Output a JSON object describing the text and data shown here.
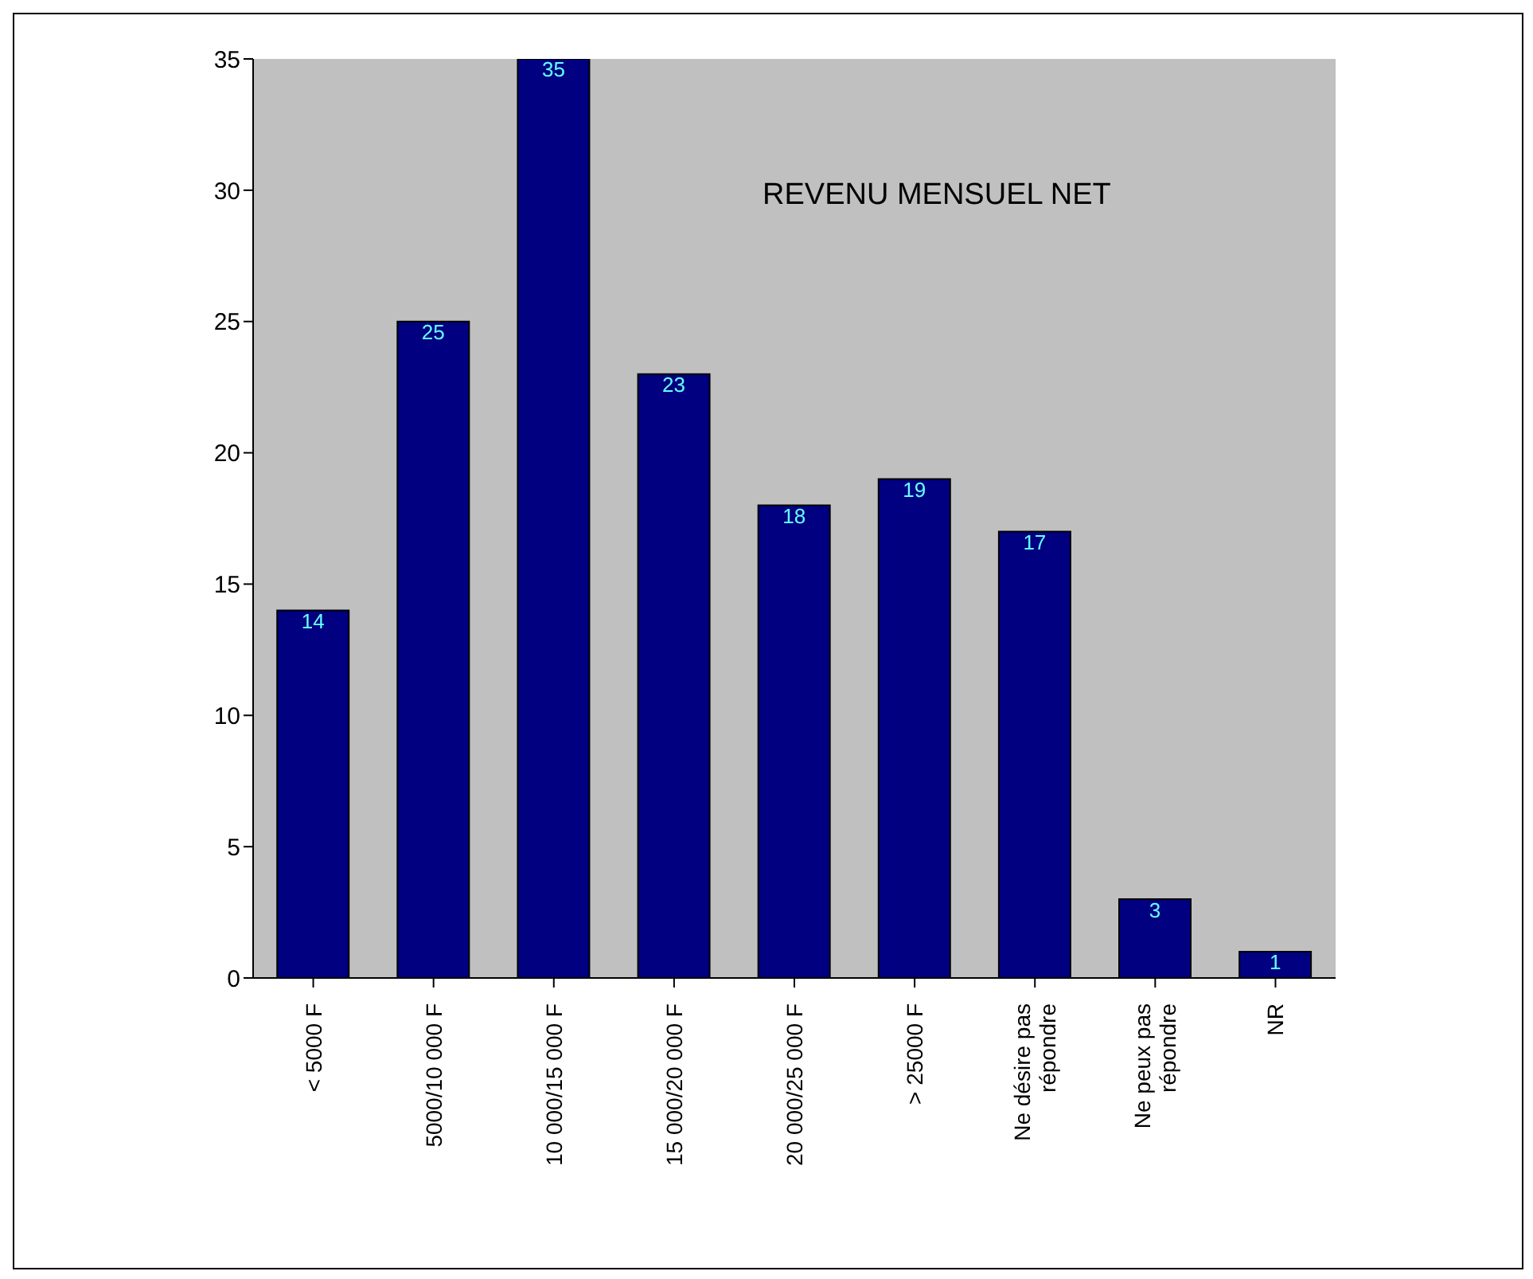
{
  "chart_data": {
    "type": "bar",
    "title": "REVENU MENSUEL NET",
    "categories": [
      "< 5000 F",
      "5000/10 000 F",
      "10 000/15 000 F",
      "15 000/20 000 F",
      "20 000/25 000 F",
      "> 25000 F",
      "Ne désire pas répondre",
      "Ne peux pas répondre",
      "NR"
    ],
    "values": [
      14,
      25,
      35,
      23,
      18,
      19,
      17,
      3,
      1
    ],
    "color": "#000080",
    "ylim": [
      0,
      35
    ],
    "yticks": [
      0,
      5,
      10,
      15,
      20,
      25,
      30,
      35
    ],
    "data_labels": true
  }
}
